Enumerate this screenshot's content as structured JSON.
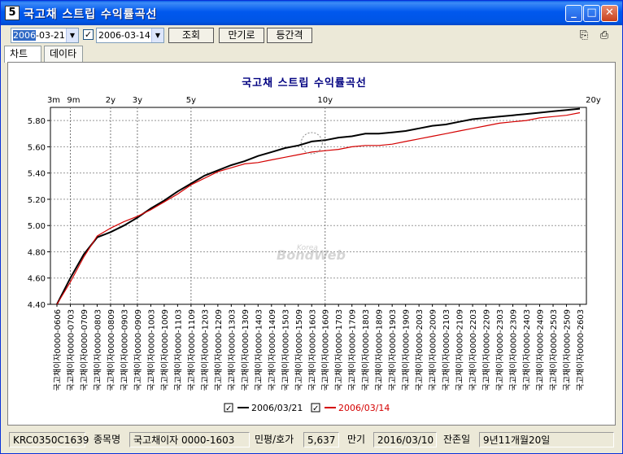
{
  "window": {
    "title": "국고채 스트립 수익률곡선",
    "icon_letter": "5",
    "minimize_label": "_",
    "maximize_label": "□",
    "close_label": "✕"
  },
  "toolbar": {
    "date1_selected": "2006",
    "date1_rest": "-03-21",
    "date2_checked": true,
    "date2": "2006-03-14",
    "query_label": "조회",
    "maturity_label": "만기로",
    "interval_label": "등간격"
  },
  "tabs": [
    {
      "label": "차트"
    },
    {
      "label": "데이타"
    }
  ],
  "chart_data": {
    "type": "line",
    "title": "국고채 스트립 수익률곡선",
    "ylim": [
      4.4,
      5.9
    ],
    "yticks": [
      "4.40",
      "4.60",
      "4.80",
      "5.00",
      "5.20",
      "5.40",
      "5.60",
      "5.80"
    ],
    "tenor_labels": [
      "3m",
      "9m",
      "2y",
      "3y",
      "5y",
      "10y",
      "20y"
    ],
    "tenor_index": [
      0,
      1,
      4,
      6,
      10,
      20,
      40
    ],
    "categories": [
      "국고채이자0000-0606",
      "국고채이자0000-0703",
      "국고채이자0000-0709",
      "국고채이자0000-0803",
      "국고채이자0000-0809",
      "국고채이자0000-0903",
      "국고채이자0000-0909",
      "국고채이자0000-1003",
      "국고채이자0000-1009",
      "국고채이자0000-1103",
      "국고채이자0000-1109",
      "국고채이자0000-1203",
      "국고채이자0000-1209",
      "국고채이자0000-1303",
      "국고채이자0000-1309",
      "국고채이자0000-1403",
      "국고채이자0000-1409",
      "국고채이자0000-1503",
      "국고채이자0000-1509",
      "국고채이자0000-1603",
      "국고채이자0000-1609",
      "국고채이자0000-1703",
      "국고채이자0000-1709",
      "국고채이자0000-1803",
      "국고채이자0000-1809",
      "국고채이자0000-1903",
      "국고채이자0000-1909",
      "국고채이자0000-2003",
      "국고채이자0000-2009",
      "국고채이자0000-2103",
      "국고채이자0000-2109",
      "국고채이자0000-2203",
      "국고채이자0000-2209",
      "국고채이자0000-2303",
      "국고채이자0000-2309",
      "국고채이자0000-2403",
      "국고채이자0000-2409",
      "국고채이자0000-2503",
      "국고채이자0000-2509",
      "국고채이자0000-2603"
    ],
    "series": [
      {
        "name": "2006/03/21",
        "color": "#000000",
        "checked": true,
        "values": [
          4.4,
          4.6,
          4.78,
          4.91,
          4.95,
          5.0,
          5.06,
          5.13,
          5.19,
          5.26,
          5.32,
          5.38,
          5.42,
          5.46,
          5.49,
          5.53,
          5.56,
          5.59,
          5.61,
          5.64,
          5.65,
          5.67,
          5.68,
          5.7,
          5.7,
          5.71,
          5.72,
          5.74,
          5.76,
          5.77,
          5.79,
          5.81,
          5.82,
          5.83,
          5.84,
          5.85,
          5.86,
          5.87,
          5.88,
          5.89
        ]
      },
      {
        "name": "2006/03/14",
        "color": "#d40000",
        "checked": true,
        "values": [
          4.4,
          4.57,
          4.76,
          4.92,
          4.98,
          5.03,
          5.07,
          5.12,
          5.18,
          5.24,
          5.31,
          5.36,
          5.41,
          5.44,
          5.47,
          5.48,
          5.5,
          5.52,
          5.54,
          5.56,
          5.57,
          5.58,
          5.6,
          5.61,
          5.61,
          5.62,
          5.64,
          5.66,
          5.68,
          5.7,
          5.72,
          5.74,
          5.76,
          5.78,
          5.79,
          5.8,
          5.82,
          5.83,
          5.84,
          5.86
        ]
      }
    ],
    "watermark": "BondWeb",
    "watermark_small": "Korea"
  },
  "status": {
    "code": "KRC0350C1639",
    "item_label": "종목명",
    "item_value": "국고채이자 0000-1603",
    "rating_label": "민평/호가",
    "rating_value": "5,637",
    "maturity_label": "만기",
    "maturity_value": "2016/03/10",
    "remain_label": "잔존일",
    "remain_value": "9년11개월20일"
  },
  "colors": {
    "titlebar": "#0055e5",
    "window_bg": "#ece9d8",
    "chart_title": "#000080"
  }
}
